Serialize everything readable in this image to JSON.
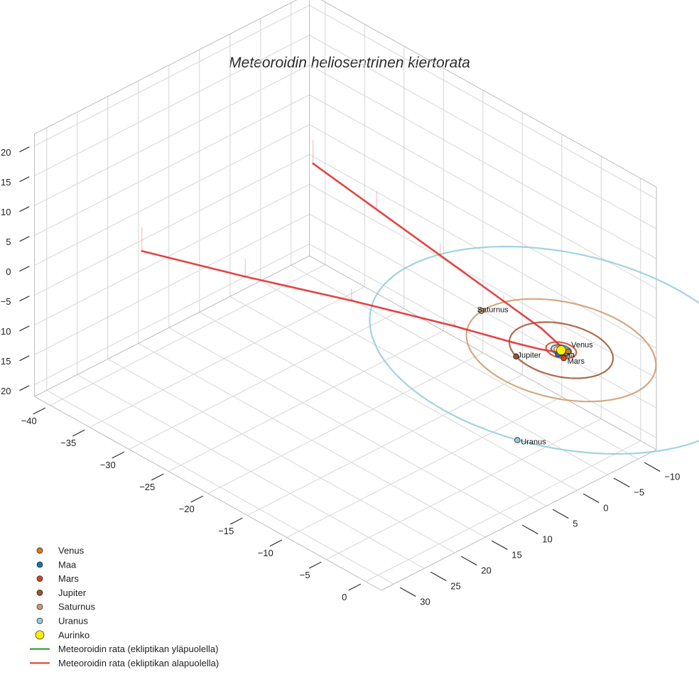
{
  "chart_data": {
    "type": "3d-line",
    "title": "Meteoroidin heliosentrinen kiertorata",
    "x_ticks": [
      "−40",
      "−35",
      "−30",
      "−25",
      "−20",
      "−15",
      "−10",
      "−5",
      "0"
    ],
    "y_ticks": [
      "−10",
      "−5",
      "0",
      "5",
      "10",
      "15",
      "20",
      "25",
      "30"
    ],
    "z_ticks": [
      "20",
      "15",
      "10",
      "5",
      "0",
      "−5",
      "−10",
      "−15",
      "−20"
    ],
    "xlim": [
      -42,
      2
    ],
    "ylim": [
      -13,
      32
    ],
    "zlim": [
      -22,
      22
    ],
    "grid": true,
    "legend_position": "bottom-left",
    "planets": [
      {
        "name": "Venus",
        "color": "#d97a1a",
        "orbit_radius_au": 0.72,
        "position": [
          0.6,
          -0.4,
          0
        ]
      },
      {
        "name": "Maa",
        "color": "#1f6fb4",
        "orbit_radius_au": 1.0,
        "position": [
          0.3,
          0.9,
          0
        ]
      },
      {
        "name": "Mars",
        "color": "#d2451e",
        "orbit_radius_au": 1.52,
        "position": [
          1.1,
          1.0,
          0
        ]
      },
      {
        "name": "Jupiter",
        "color": "#a0522d",
        "orbit_radius_au": 5.2,
        "position": [
          -2.0,
          4.8,
          0
        ]
      },
      {
        "name": "Saturnus",
        "color": "#cd9a6a",
        "orbit_radius_au": 9.5,
        "position": [
          -9.5,
          0.8,
          0
        ]
      },
      {
        "name": "Uranus",
        "color": "#8fcbe0",
        "orbit_radius_au": 19.2,
        "position": [
          8.0,
          17.5,
          0
        ]
      }
    ],
    "sun": {
      "name": "Aurinko",
      "color": "#f7f000",
      "position": [
        0,
        0,
        0
      ]
    },
    "series": [
      {
        "name": "Meteoroidin rata (ekliptikan yläpuolella)",
        "color": "#1a9a1a",
        "points": []
      },
      {
        "name": "Meteoroidin rata (ekliptikan alapuolella)",
        "color": "#e03030",
        "points": [
          [
            -40,
            -11,
            -4
          ],
          [
            -30,
            -8.5,
            -3
          ],
          [
            -20,
            -6,
            -2
          ],
          [
            -10,
            -3.5,
            -1
          ],
          [
            -4,
            -2,
            -0.4
          ],
          [
            -1.5,
            -1,
            -0.15
          ],
          [
            0.3,
            -0.3,
            0
          ],
          [
            0.3,
            0.4,
            0
          ],
          [
            -1.5,
            1.5,
            -0.15
          ],
          [
            -4,
            2.5,
            -0.4
          ],
          [
            -10,
            4.5,
            -1
          ],
          [
            -20,
            8.5,
            -2
          ],
          [
            -30,
            13,
            -3
          ],
          [
            -40,
            17,
            -4
          ]
        ]
      }
    ]
  }
}
